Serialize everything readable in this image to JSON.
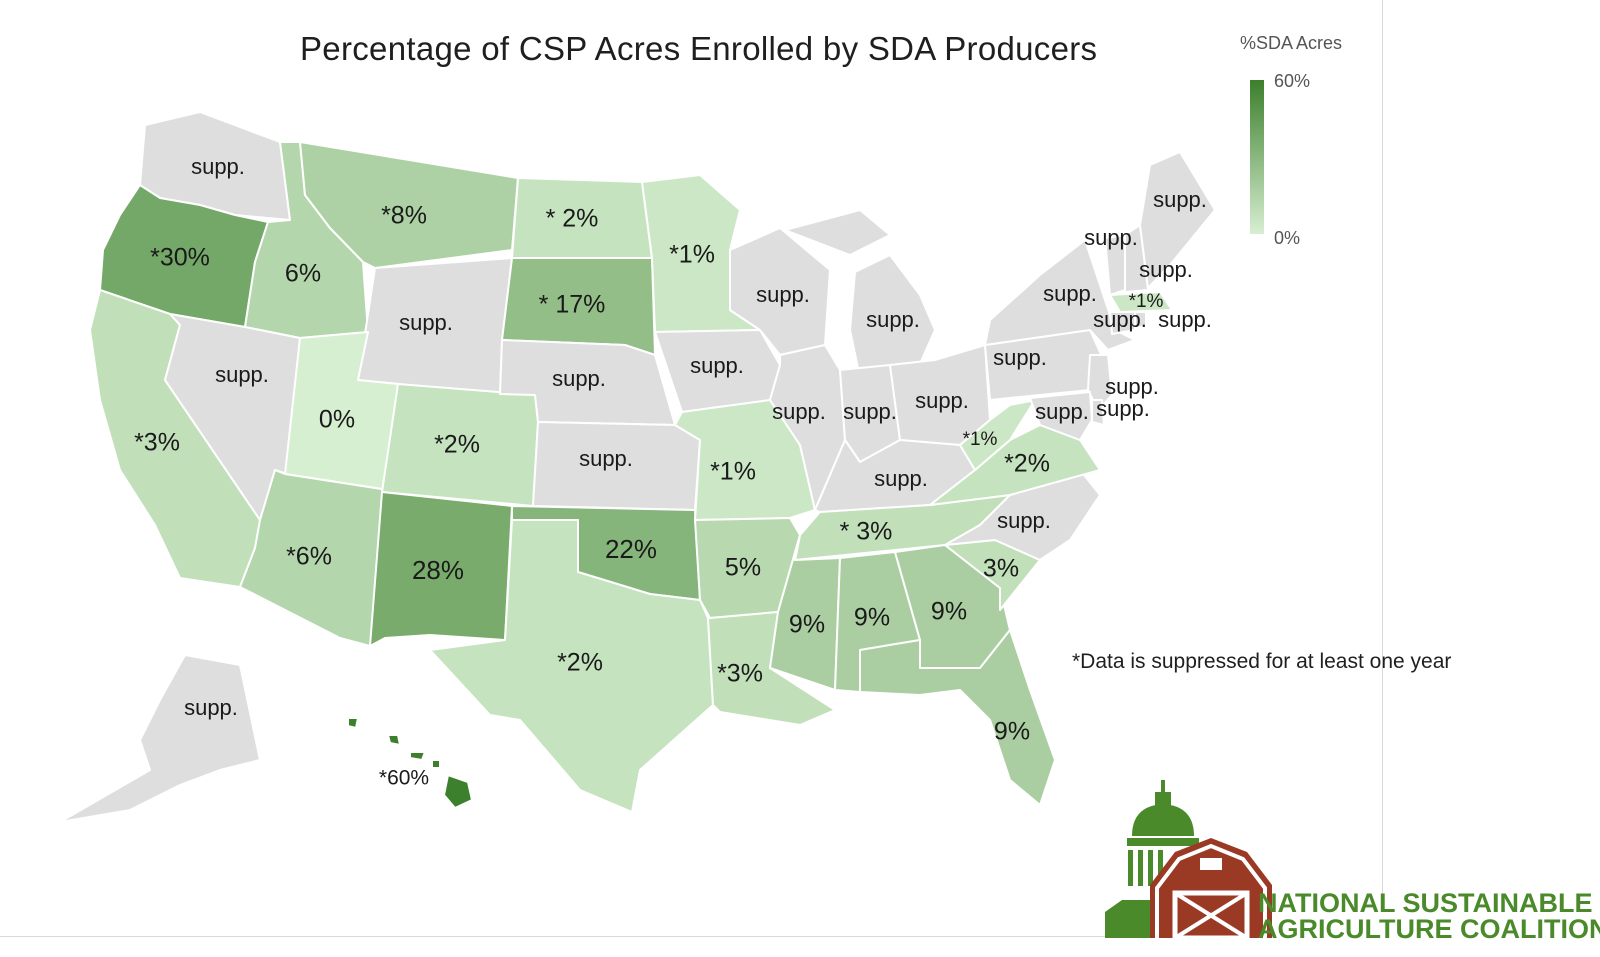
{
  "title": "Percentage of CSP Acres Enrolled by SDA Producers",
  "legend": {
    "title": "%SDA Acres",
    "max_label": "60%",
    "min_label": "0%",
    "color_high": "#3c7f2c",
    "color_low": "#d7efd1",
    "suppressed_color": "#dedede"
  },
  "footnote": "*Data is suppressed for at least one year",
  "logo": {
    "line1": "NATIONAL SUSTAINABLE",
    "line2": "AGRICULTURE COALITION",
    "green": "#4a8a2a",
    "barn_red": "#9b3a24"
  },
  "states": [
    {
      "id": "WA",
      "label": "supp.",
      "value": null
    },
    {
      "id": "OR",
      "label": "*30%",
      "value": 30
    },
    {
      "id": "CA",
      "label": "*3%",
      "value": 3
    },
    {
      "id": "ID",
      "label": "6%",
      "value": 6
    },
    {
      "id": "NV",
      "label": "supp.",
      "value": null
    },
    {
      "id": "MT",
      "label": "*8%",
      "value": 8
    },
    {
      "id": "WY",
      "label": "supp.",
      "value": null
    },
    {
      "id": "UT",
      "label": "0%",
      "value": 0
    },
    {
      "id": "AZ",
      "label": "*6%",
      "value": 6
    },
    {
      "id": "CO",
      "label": "*2%",
      "value": 2
    },
    {
      "id": "NM",
      "label": "28%",
      "value": 28
    },
    {
      "id": "ND",
      "label": "* 2%",
      "value": 2
    },
    {
      "id": "SD",
      "label": "* 17%",
      "value": 17
    },
    {
      "id": "NE",
      "label": "supp.",
      "value": null
    },
    {
      "id": "KS",
      "label": "supp.",
      "value": null
    },
    {
      "id": "OK",
      "label": "22%",
      "value": 22
    },
    {
      "id": "TX",
      "label": "*2%",
      "value": 2
    },
    {
      "id": "MN",
      "label": "*1%",
      "value": 1
    },
    {
      "id": "IA",
      "label": "supp.",
      "value": null
    },
    {
      "id": "MO",
      "label": "*1%",
      "value": 1
    },
    {
      "id": "AR",
      "label": "5%",
      "value": 5
    },
    {
      "id": "LA",
      "label": "*3%",
      "value": 3
    },
    {
      "id": "WI",
      "label": "supp.",
      "value": null
    },
    {
      "id": "MI",
      "label": "supp.",
      "value": null
    },
    {
      "id": "IL",
      "label": "supp.",
      "value": null
    },
    {
      "id": "IN",
      "label": "supp.",
      "value": null
    },
    {
      "id": "OH",
      "label": "supp.",
      "value": null
    },
    {
      "id": "KY",
      "label": "supp.",
      "value": null
    },
    {
      "id": "TN",
      "label": "* 3%",
      "value": 3
    },
    {
      "id": "MS",
      "label": "9%",
      "value": 9
    },
    {
      "id": "AL",
      "label": "9%",
      "value": 9
    },
    {
      "id": "GA",
      "label": "9%",
      "value": 9
    },
    {
      "id": "FL",
      "label": "9%",
      "value": 9
    },
    {
      "id": "SC",
      "label": "3%",
      "value": 3
    },
    {
      "id": "NC",
      "label": "supp.",
      "value": null
    },
    {
      "id": "VA",
      "label": "*2%",
      "value": 2
    },
    {
      "id": "WV",
      "label": "*1%",
      "value": 1
    },
    {
      "id": "PA",
      "label": "supp.",
      "value": null
    },
    {
      "id": "NY",
      "label": "supp.",
      "value": null
    },
    {
      "id": "VT",
      "label": "supp.",
      "value": null
    },
    {
      "id": "NH",
      "label": "supp.",
      "value": null
    },
    {
      "id": "ME",
      "label": "supp.",
      "value": null
    },
    {
      "id": "MA",
      "label": "*1%",
      "value": 1
    },
    {
      "id": "CT",
      "label": "supp.",
      "value": null
    },
    {
      "id": "RI",
      "label": "supp.",
      "value": null
    },
    {
      "id": "NJ",
      "label": "supp.",
      "value": null
    },
    {
      "id": "DE",
      "label": "supp.",
      "value": null
    },
    {
      "id": "MD",
      "label": "supp.",
      "value": null
    },
    {
      "id": "AK",
      "label": "supp.",
      "value": null
    },
    {
      "id": "HI",
      "label": "*60%",
      "value": 60
    }
  ]
}
